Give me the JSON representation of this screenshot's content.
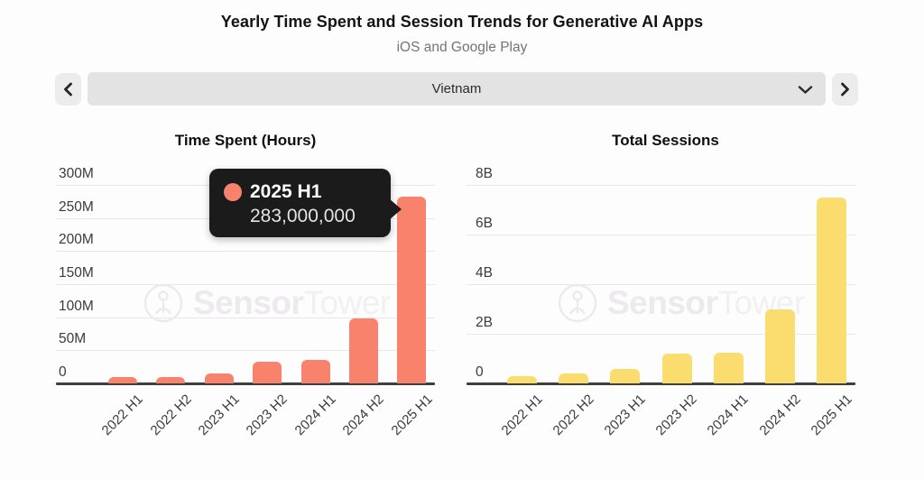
{
  "header": {
    "title": "Yearly Time Spent and Session Trends for Generative AI Apps",
    "subtitle": "iOS and Google Play"
  },
  "selector": {
    "value": "Vietnam",
    "prev_icon": "chevron-left",
    "next_icon": "chevron-right",
    "dropdown_icon": "chevron-down"
  },
  "watermark": {
    "brand_bold": "Sensor",
    "brand_light": "Tower",
    "logo_icon": "sensortower-logo"
  },
  "tooltip": {
    "series": "2025 H1",
    "value": "283,000,000",
    "dot_color": "#f9826c",
    "bg_color": "#1b1b1c"
  },
  "chart_data": [
    {
      "type": "bar",
      "title": "Time Spent (Hours)",
      "categories": [
        "2022 H1",
        "2022 H2",
        "2023 H1",
        "2023 H2",
        "2024 H1",
        "2024 H2",
        "2025 H1"
      ],
      "values": [
        9000000,
        10000000,
        15000000,
        33000000,
        36000000,
        98000000,
        283000000
      ],
      "y_ticks": [
        "0",
        "50M",
        "100M",
        "150M",
        "200M",
        "250M",
        "300M"
      ],
      "ylim": [
        0,
        300000000
      ],
      "ylabel": "",
      "xlabel": "",
      "grid": "horizontal",
      "legend": "none",
      "bar_color": "#f9826c",
      "highlighted_bar": "2025 H1",
      "unit": "hours"
    },
    {
      "type": "bar",
      "title": "Total Sessions",
      "categories": [
        "2022 H1",
        "2022 H2",
        "2023 H1",
        "2023 H2",
        "2024 H1",
        "2024 H2",
        "2025 H1"
      ],
      "values": [
        300000000,
        400000000,
        600000000,
        1200000000,
        1250000000,
        3000000000,
        7500000000
      ],
      "y_ticks": [
        "0",
        "2B",
        "4B",
        "6B",
        "8B"
      ],
      "ylim": [
        0,
        8000000000
      ],
      "ylabel": "",
      "xlabel": "",
      "grid": "horizontal",
      "legend": "none",
      "bar_color": "#fadd6e",
      "unit": "sessions"
    }
  ]
}
